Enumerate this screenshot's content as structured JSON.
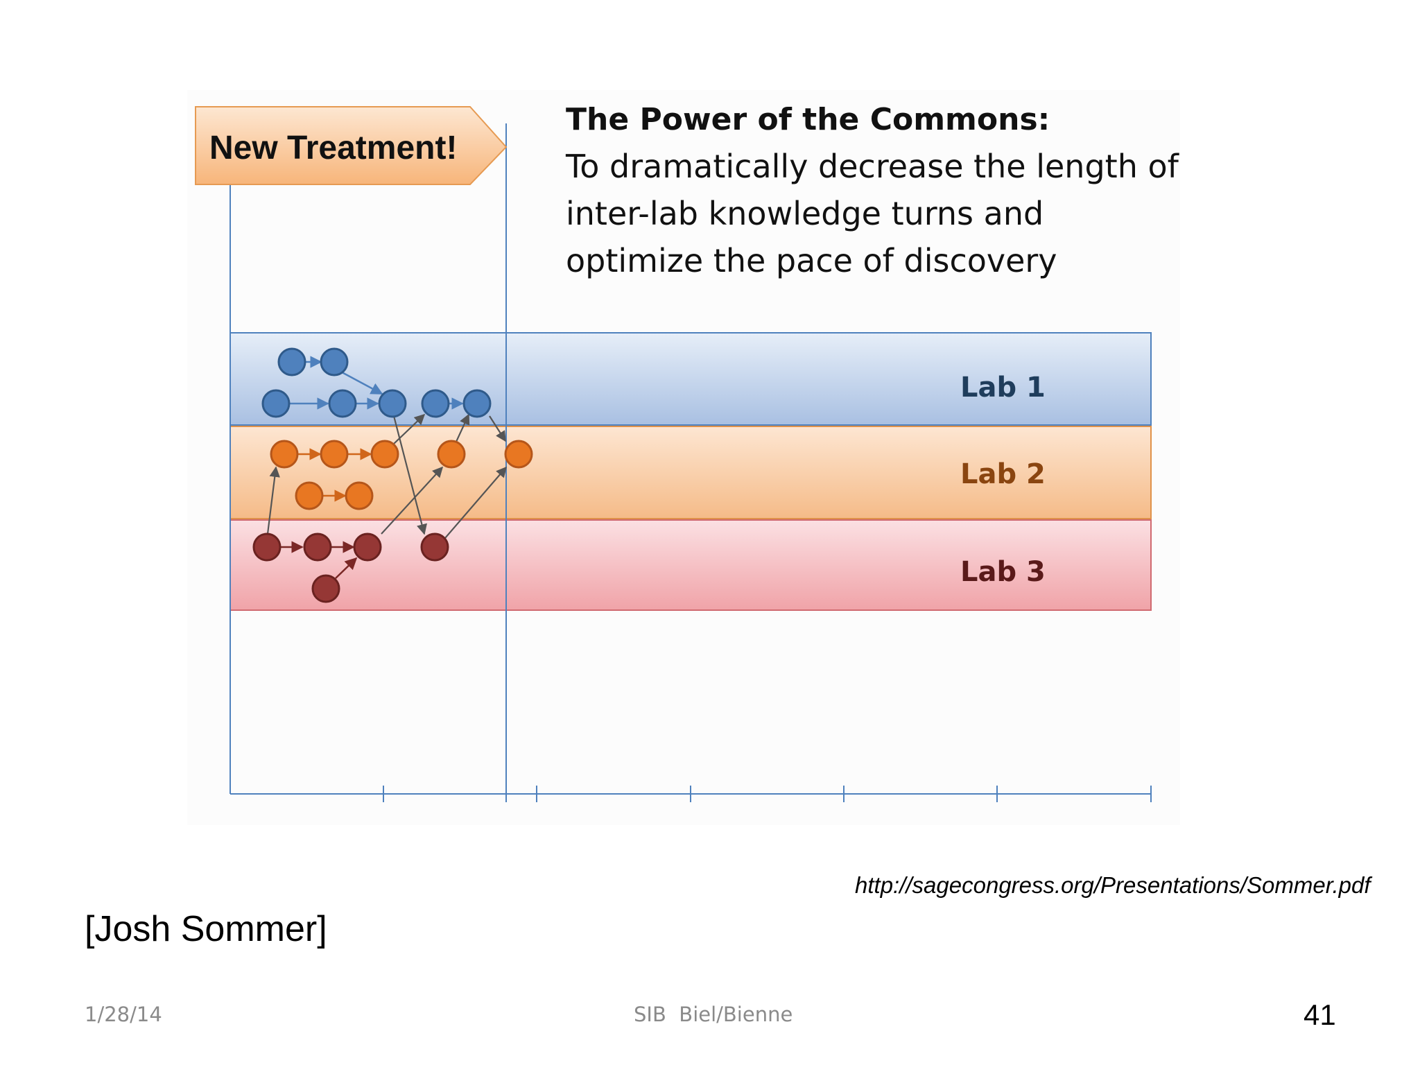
{
  "slide": {
    "callout_label": "New Treatment!",
    "headline": {
      "title": "The Power of the Commons:",
      "body": "To dramatically decrease the length of inter-lab knowledge turns and optimize the pace of discovery"
    },
    "lanes": [
      {
        "label": "Lab 1",
        "color": "#4f81bd",
        "text_color": "#1f3d5c"
      },
      {
        "label": "Lab 2",
        "color": "#f79646",
        "text_color": "#8a4510"
      },
      {
        "label": "Lab 3",
        "color": "#c0504d",
        "text_color": "#5a1a1a"
      }
    ],
    "node_colors": {
      "lab1": "#4f81bd",
      "lab2": "#e87722",
      "lab3": "#953735"
    },
    "source_url": "http://sagecongress.org/Presentations/Sommer.pdf",
    "attribution": "[Josh Sommer]",
    "footer": {
      "date": "1/28/14",
      "center": "SIB  Biel/Bienne",
      "page_number": "41"
    }
  }
}
